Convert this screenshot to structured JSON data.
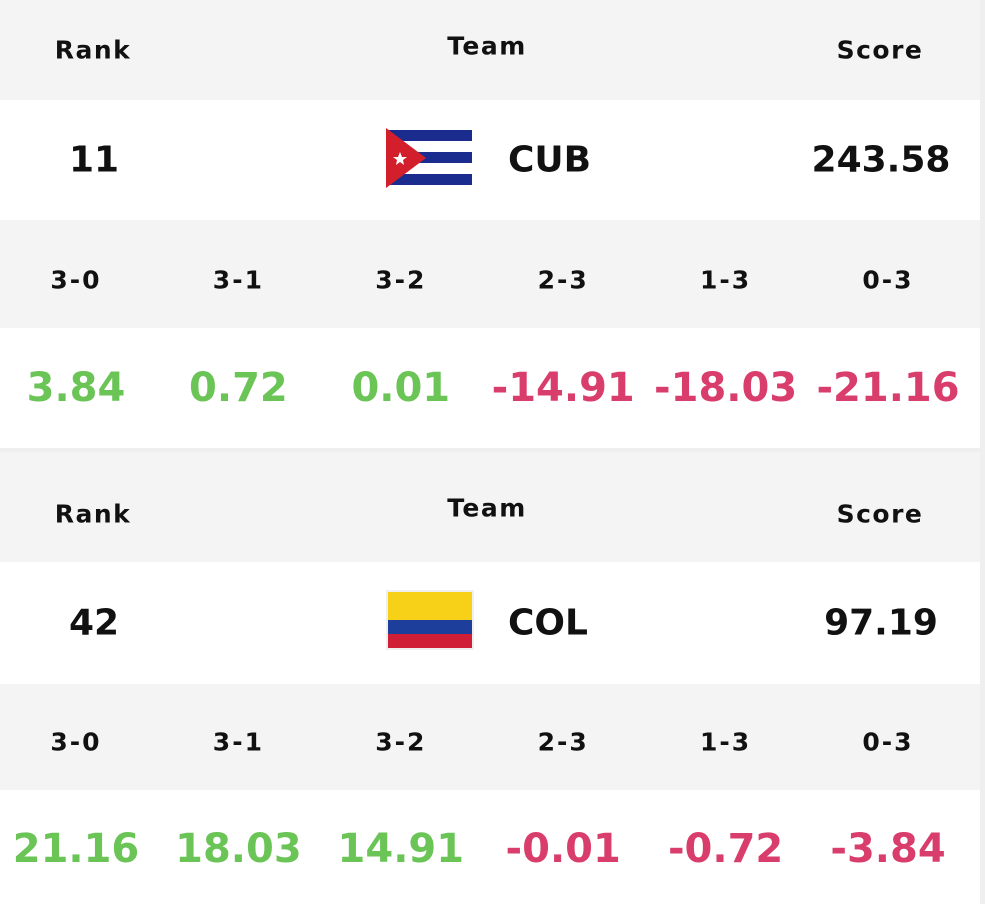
{
  "cards": [
    {
      "header": {
        "rank": "Rank",
        "team": "Team",
        "score": "Score"
      },
      "rank": 11,
      "team": "CUB",
      "score": 243.58,
      "outcomes": [
        "3-0",
        "3-1",
        "3-2",
        "2-3",
        "1-3",
        "0-3"
      ],
      "values": [
        3.84,
        0.72,
        0.01,
        -14.91,
        -18.03,
        -21.16
      ]
    },
    {
      "header": {
        "rank": "Rank",
        "team": "Team",
        "score": "Score"
      },
      "rank": 42,
      "team": "COL",
      "score": 97.19,
      "outcomes": [
        "3-0",
        "3-1",
        "3-2",
        "2-3",
        "1-3",
        "0-3"
      ],
      "values": [
        21.16,
        18.03,
        14.91,
        -0.01,
        -0.72,
        -3.84
      ]
    }
  ]
}
